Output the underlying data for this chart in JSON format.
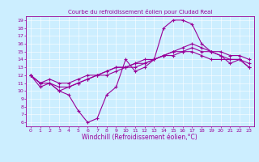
{
  "title": "Courbe du refroidissement éolien pour Ciudad Real",
  "xlabel": "Windchill (Refroidissement éolien,°C)",
  "bg_color": "#cceeff",
  "line_color": "#990099",
  "xlim": [
    -0.5,
    23.5
  ],
  "ylim": [
    5.5,
    19.5
  ],
  "xticks": [
    0,
    1,
    2,
    3,
    4,
    5,
    6,
    7,
    8,
    9,
    10,
    11,
    12,
    13,
    14,
    15,
    16,
    17,
    18,
    19,
    20,
    21,
    22,
    23
  ],
  "yticks": [
    6,
    7,
    8,
    9,
    10,
    11,
    12,
    13,
    14,
    15,
    16,
    17,
    18,
    19
  ],
  "line1_x": [
    0,
    1,
    2,
    3,
    4,
    5,
    6,
    7,
    8,
    9,
    10,
    11,
    12,
    13,
    14,
    15,
    16,
    17,
    18,
    19,
    20,
    21,
    22,
    23
  ],
  "line1_y": [
    12,
    10.5,
    11,
    10,
    9.5,
    7.5,
    6,
    6.5,
    9.5,
    10.5,
    14,
    12.5,
    13,
    14,
    18,
    19,
    19,
    18.5,
    16,
    15,
    14.5,
    13.5,
    14,
    13
  ],
  "line2_x": [
    0,
    1,
    2,
    3,
    4,
    5,
    6,
    7,
    8,
    9,
    10,
    11,
    12,
    13,
    14,
    15,
    16,
    17,
    18,
    19,
    20,
    21,
    22,
    23
  ],
  "line2_y": [
    12,
    11,
    11,
    10,
    10.5,
    11,
    11.5,
    12,
    12,
    12.5,
    13,
    13,
    13.5,
    14,
    14.5,
    15,
    15.5,
    16,
    15.5,
    15,
    14.5,
    14,
    14,
    13.5
  ],
  "line3_x": [
    0,
    1,
    2,
    3,
    4,
    5,
    6,
    7,
    8,
    9,
    10,
    11,
    12,
    13,
    14,
    15,
    16,
    17,
    18,
    19,
    20,
    21,
    22,
    23
  ],
  "line3_y": [
    12,
    11,
    11,
    10.5,
    10.5,
    11,
    11.5,
    12,
    12.5,
    13,
    13,
    13.5,
    14,
    14,
    14.5,
    15,
    15,
    15.5,
    15,
    15,
    15,
    14.5,
    14.5,
    14
  ],
  "line4_x": [
    0,
    1,
    2,
    3,
    4,
    5,
    6,
    7,
    8,
    9,
    10,
    11,
    12,
    13,
    14,
    15,
    16,
    17,
    18,
    19,
    20,
    21,
    22,
    23
  ],
  "line4_y": [
    12,
    11,
    11.5,
    11,
    11,
    11.5,
    12,
    12,
    12.5,
    13,
    13,
    13.5,
    13.5,
    14,
    14.5,
    14.5,
    15,
    15,
    14.5,
    14,
    14,
    14,
    14,
    13
  ],
  "title_fontsize": 5.0,
  "xlabel_fontsize": 5.5,
  "tick_fontsize": 4.5
}
